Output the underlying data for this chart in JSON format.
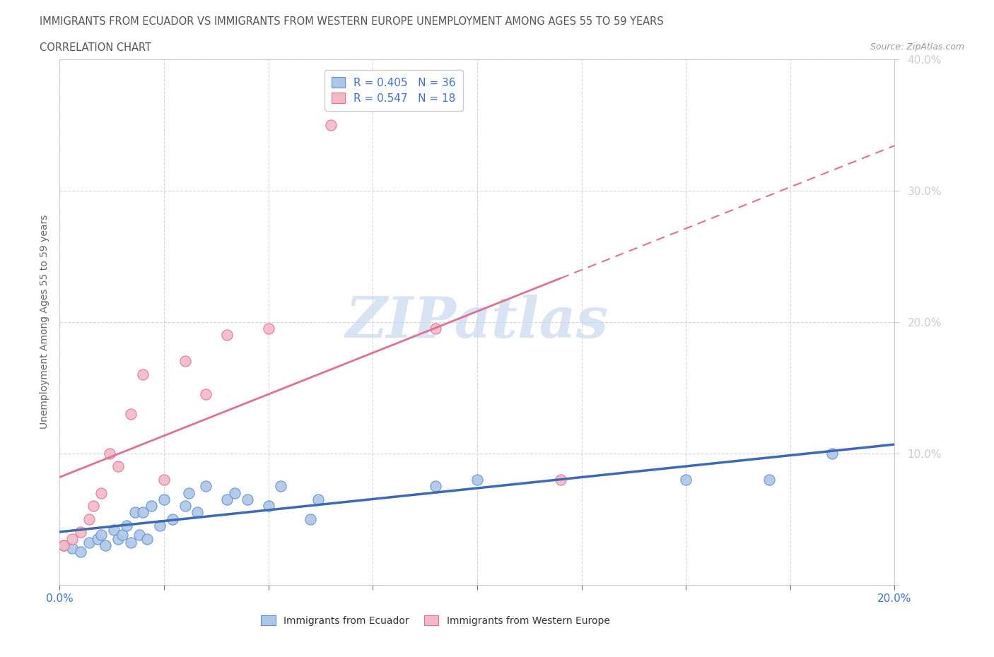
{
  "title_line1": "IMMIGRANTS FROM ECUADOR VS IMMIGRANTS FROM WESTERN EUROPE UNEMPLOYMENT AMONG AGES 55 TO 59 YEARS",
  "title_line2": "CORRELATION CHART",
  "source_text": "Source: ZipAtlas.com",
  "ylabel": "Unemployment Among Ages 55 to 59 years",
  "xlim": [
    0.0,
    0.2
  ],
  "ylim": [
    0.0,
    0.4
  ],
  "xticks": [
    0.0,
    0.025,
    0.05,
    0.075,
    0.1,
    0.125,
    0.15,
    0.175,
    0.2
  ],
  "yticks": [
    0.0,
    0.1,
    0.2,
    0.3,
    0.4
  ],
  "ecuador_color": "#aec6e8",
  "ecuador_edge_color": "#5b8fcc",
  "western_europe_color": "#f5b8c8",
  "western_europe_edge_color": "#e07090",
  "trendline_color_ecuador": "#3d6ab5",
  "trendline_color_western": "#e07090",
  "watermark_color": "#c8d8f0",
  "legend_r_ecuador": "R = 0.405",
  "legend_n_ecuador": "N = 36",
  "legend_r_western": "R = 0.547",
  "legend_n_western": "N = 18",
  "ecuador_scatter_x": [
    0.001,
    0.003,
    0.005,
    0.007,
    0.009,
    0.01,
    0.011,
    0.013,
    0.014,
    0.015,
    0.016,
    0.017,
    0.018,
    0.019,
    0.02,
    0.021,
    0.022,
    0.024,
    0.025,
    0.027,
    0.03,
    0.031,
    0.033,
    0.035,
    0.04,
    0.042,
    0.045,
    0.05,
    0.053,
    0.06,
    0.062,
    0.09,
    0.1,
    0.15,
    0.17,
    0.185
  ],
  "ecuador_scatter_y": [
    0.03,
    0.028,
    0.025,
    0.032,
    0.035,
    0.038,
    0.03,
    0.042,
    0.035,
    0.038,
    0.045,
    0.032,
    0.055,
    0.038,
    0.055,
    0.035,
    0.06,
    0.045,
    0.065,
    0.05,
    0.06,
    0.07,
    0.055,
    0.075,
    0.065,
    0.07,
    0.065,
    0.06,
    0.075,
    0.05,
    0.065,
    0.075,
    0.08,
    0.08,
    0.08,
    0.1
  ],
  "western_scatter_x": [
    0.001,
    0.003,
    0.005,
    0.007,
    0.008,
    0.01,
    0.012,
    0.014,
    0.017,
    0.02,
    0.025,
    0.03,
    0.035,
    0.04,
    0.05,
    0.065,
    0.09,
    0.12
  ],
  "western_scatter_y": [
    0.03,
    0.035,
    0.04,
    0.05,
    0.06,
    0.07,
    0.1,
    0.09,
    0.13,
    0.16,
    0.08,
    0.17,
    0.145,
    0.19,
    0.195,
    0.35,
    0.195,
    0.08
  ],
  "background_color": "#ffffff",
  "grid_color": "#cccccc"
}
